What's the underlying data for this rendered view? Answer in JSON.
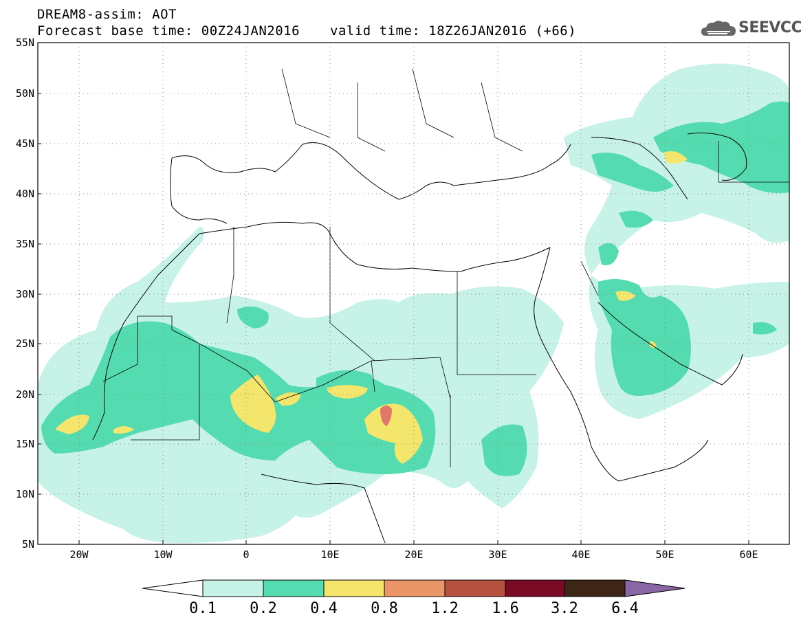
{
  "header": {
    "title": "DREAM8-assim: AOT",
    "base_time": "Forecast base time: 00Z24JAN2016",
    "valid_time": "valid time: 18Z26JAN2016 (+66)"
  },
  "logo": {
    "text": "SEEVCCC",
    "icon": "cloud-icon"
  },
  "map": {
    "lat_labels": [
      "55N",
      "50N",
      "45N",
      "40N",
      "35N",
      "30N",
      "25N",
      "20N",
      "15N",
      "10N",
      "5N"
    ],
    "lon_labels": [
      "20W",
      "10W",
      "0",
      "10E",
      "20E",
      "30E",
      "40E",
      "50E",
      "60E"
    ],
    "lat_range": [
      5,
      55
    ],
    "lon_range": [
      -25,
      65
    ],
    "grid": "dotted"
  },
  "colorbar": {
    "levels": [
      "0.1",
      "0.2",
      "0.4",
      "0.8",
      "1.2",
      "1.6",
      "3.2",
      "6.4"
    ],
    "colors": [
      "#ffffff",
      "#c7f2e8",
      "#55dbb0",
      "#f4e56d",
      "#eb9668",
      "#b5523f",
      "#7b0a27",
      "#3e2617",
      "#8a66a6"
    ]
  },
  "colors": {
    "c1": "#c7f2e8",
    "c2": "#55dbb0",
    "c3": "#f4e56d",
    "c4": "#e0776a"
  }
}
